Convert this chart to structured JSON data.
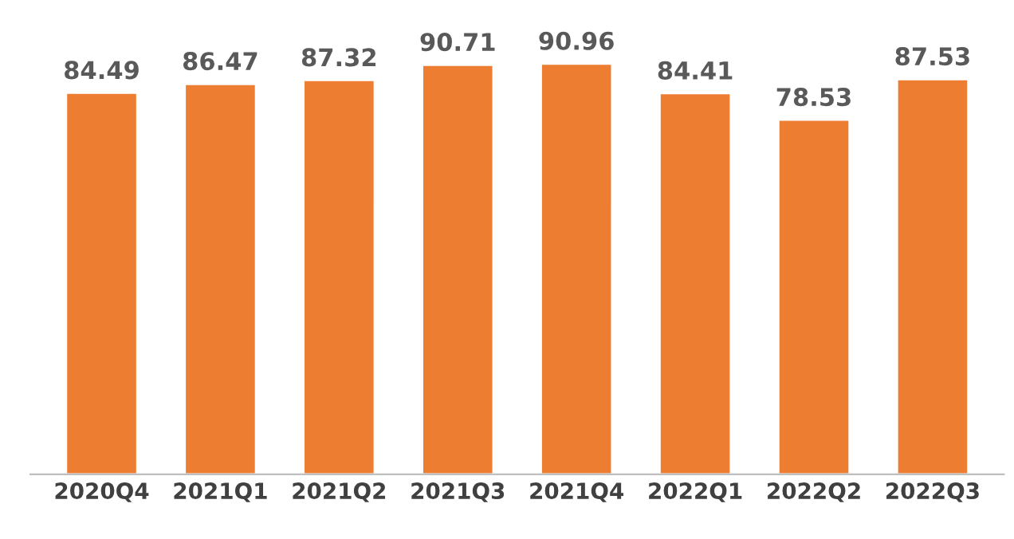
{
  "chart_data": {
    "type": "bar",
    "categories": [
      "2020Q4",
      "2021Q1",
      "2021Q2",
      "2021Q3",
      "2021Q4",
      "2022Q1",
      "2022Q2",
      "2022Q3"
    ],
    "values": [
      84.49,
      86.47,
      87.32,
      90.71,
      90.96,
      84.41,
      78.53,
      87.53
    ],
    "color": "#ed7d31",
    "data_labels": true,
    "grid": false,
    "legend": false,
    "tick_labels": "x"
  }
}
